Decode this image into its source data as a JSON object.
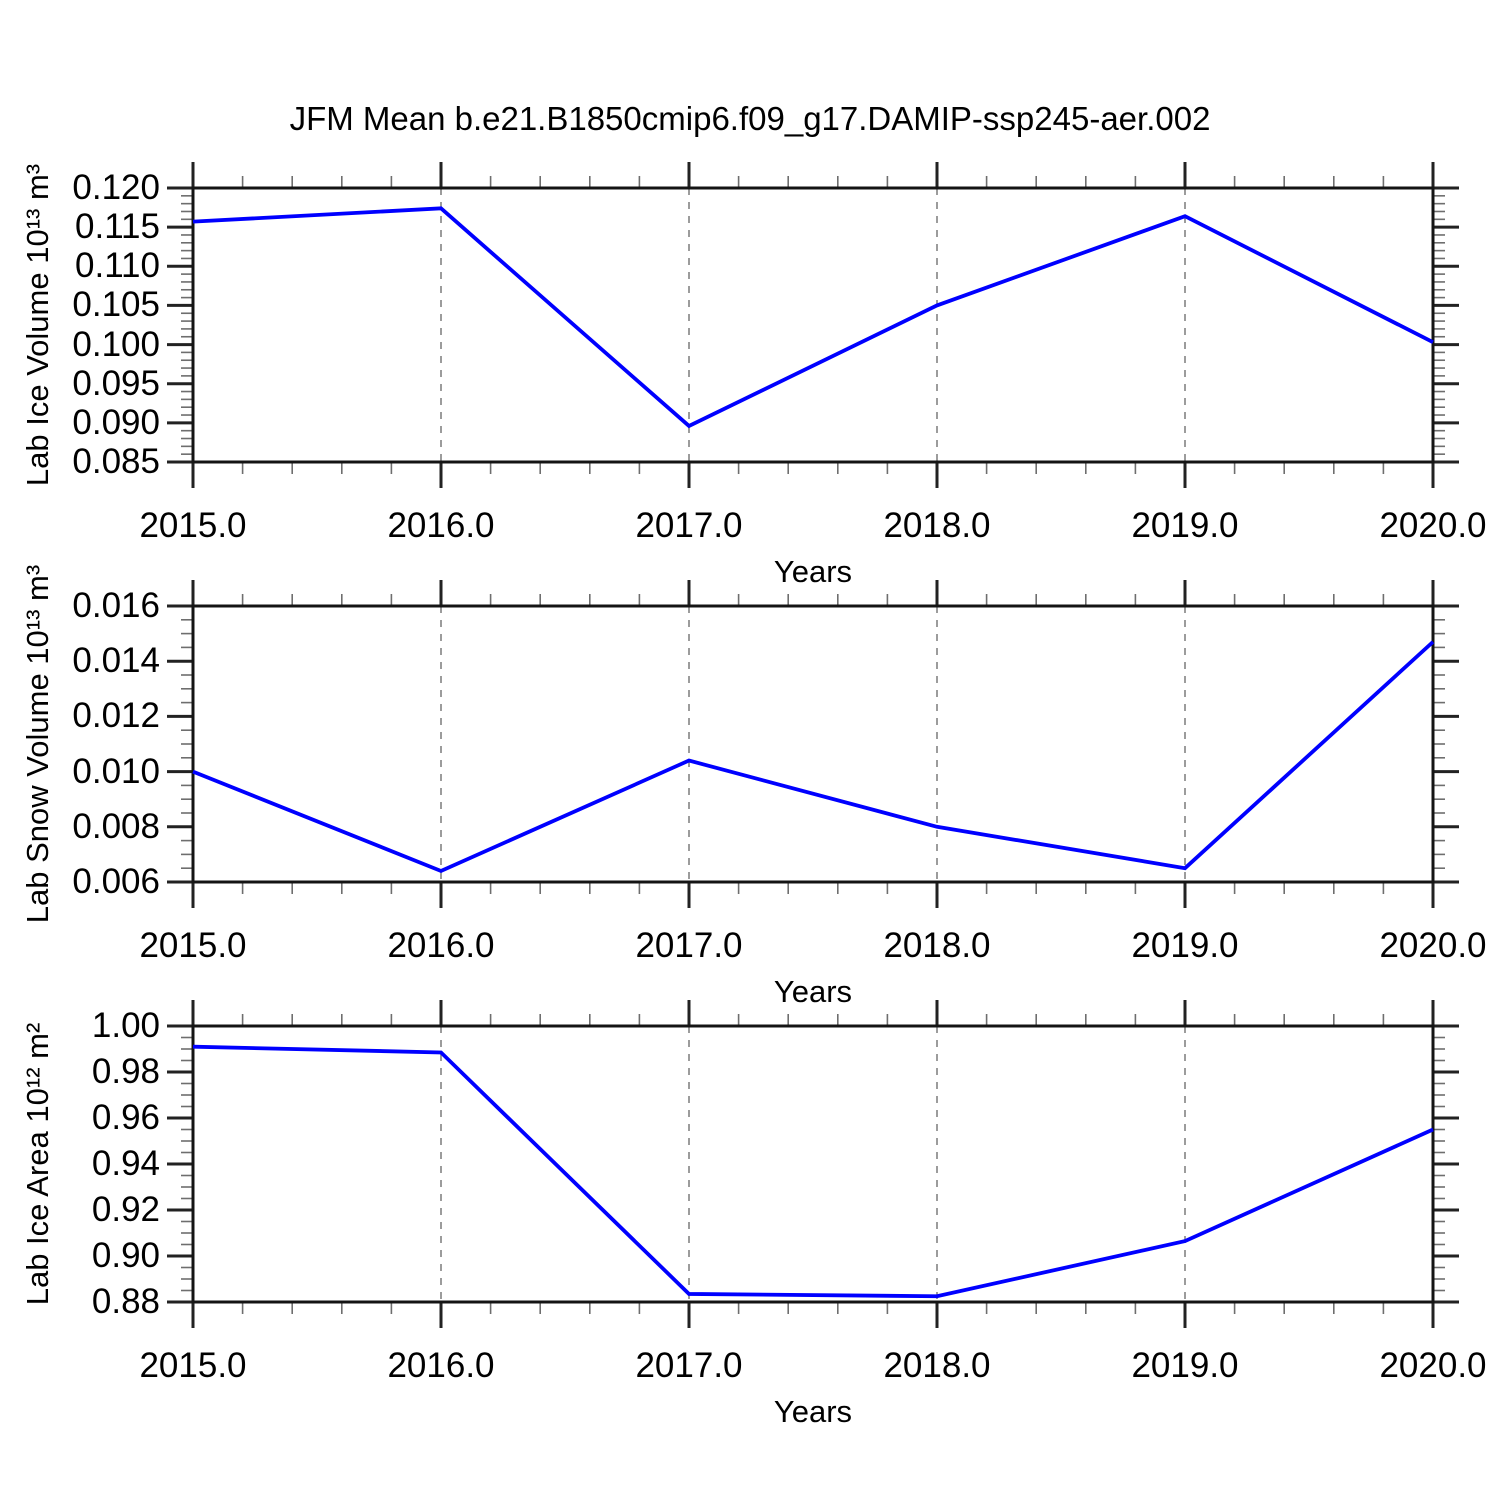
{
  "title": "JFM Mean b.e21.B1850cmip6.f09_g17.DAMIP-ssp245-aer.002",
  "colors": {
    "line": "#0000ff",
    "frame": "#141414",
    "major_tick": "#222222",
    "minor_tick": "#6e6e6e",
    "gridline": "#848484",
    "text": "#000000",
    "background": "#ffffff"
  },
  "x_axis": {
    "label": "Years",
    "tick_labels": [
      "2015.0",
      "2016.0",
      "2017.0",
      "2018.0",
      "2019.0",
      "2020.0"
    ],
    "tick_values": [
      2015,
      2016,
      2017,
      2018,
      2019,
      2020
    ],
    "minor_subdivisions": 5,
    "range": [
      2015,
      2020
    ],
    "gridline_years": [
      2016,
      2017,
      2018,
      2019
    ]
  },
  "chart_data": [
    {
      "type": "line",
      "name": "lab-ice-volume",
      "ylabel": "Lab Ice Volume 10¹³ m³",
      "x": [
        2015,
        2016,
        2017,
        2018,
        2019,
        2020
      ],
      "values": [
        0.1157,
        0.1174,
        0.0896,
        0.105,
        0.1164,
        0.1003
      ],
      "ylim": [
        0.085,
        0.12
      ],
      "ytick_labels": [
        "0.085",
        "0.090",
        "0.095",
        "0.100",
        "0.105",
        "0.110",
        "0.115",
        "0.120"
      ],
      "yminor_subdivisions": 5,
      "grid": "vertical-dashed",
      "legend": "none"
    },
    {
      "type": "line",
      "name": "lab-snow-volume",
      "ylabel": "Lab Snow Volume 10¹³ m³",
      "x": [
        2015,
        2016,
        2017,
        2018,
        2019,
        2020
      ],
      "values": [
        0.01,
        0.0064,
        0.0104,
        0.008,
        0.0065,
        0.0147
      ],
      "ylim": [
        0.006,
        0.016
      ],
      "ytick_labels": [
        "0.006",
        "0.008",
        "0.010",
        "0.012",
        "0.014",
        "0.016"
      ],
      "yminor_subdivisions": 4,
      "grid": "vertical-dashed",
      "legend": "none"
    },
    {
      "type": "line",
      "name": "lab-ice-area",
      "ylabel": "Lab Ice Area 10¹² m²",
      "x": [
        2015,
        2016,
        2017,
        2018,
        2019,
        2020
      ],
      "values": [
        0.991,
        0.9885,
        0.8835,
        0.8825,
        0.9065,
        0.955
      ],
      "ylim": [
        0.88,
        1.0
      ],
      "ytick_labels": [
        "0.88",
        "0.90",
        "0.92",
        "0.94",
        "0.96",
        "0.98",
        "1.00"
      ],
      "yminor_subdivisions": 4,
      "grid": "vertical-dashed",
      "legend": "none"
    }
  ]
}
